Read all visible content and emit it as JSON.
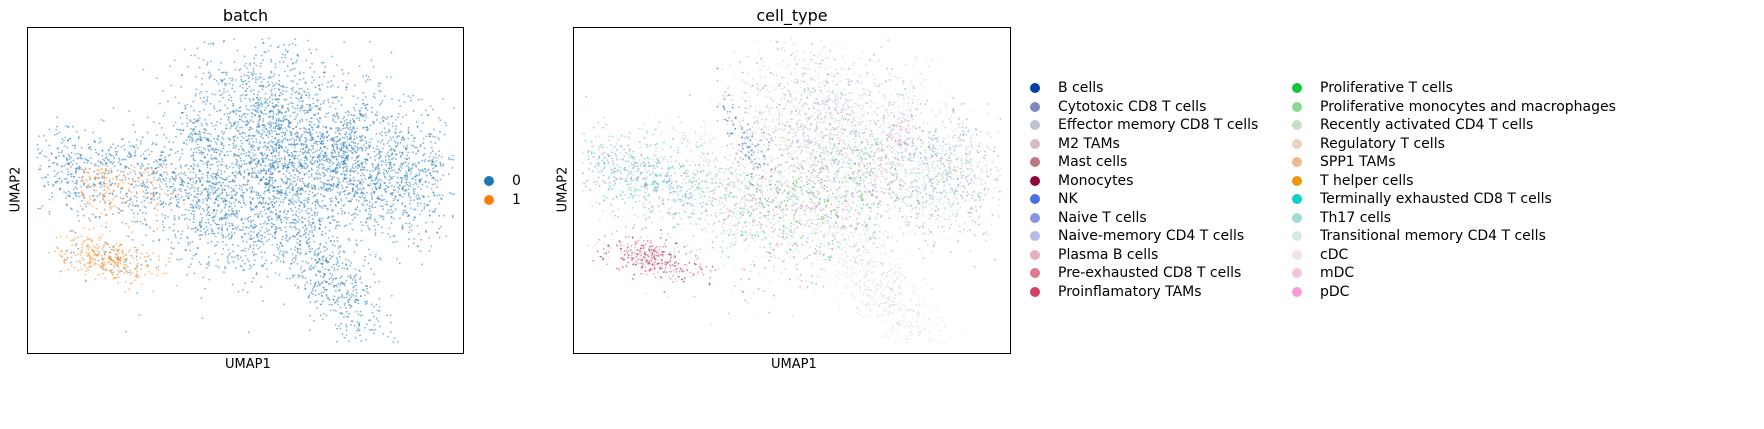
{
  "chart_data": [
    {
      "type": "scatter",
      "title": "batch",
      "xlabel": "UMAP1",
      "ylabel": "UMAP2",
      "ticks": false,
      "legend_position": "right",
      "series": [
        {
          "name": "0",
          "color": "#1f77b4"
        },
        {
          "name": "1",
          "color": "#ff7f0e"
        }
      ]
    },
    {
      "type": "scatter",
      "title": "cell_type",
      "xlabel": "UMAP1",
      "ylabel": "UMAP2",
      "ticks": false,
      "legend_position": "right",
      "series": [
        {
          "name": "B cells",
          "color": "#023fa5"
        },
        {
          "name": "Cytotoxic CD8 T cells",
          "color": "#7d87b9"
        },
        {
          "name": "Effector memory CD8 T cells",
          "color": "#bec1d4"
        },
        {
          "name": "M2 TAMs",
          "color": "#d6bcc0"
        },
        {
          "name": "Mast cells",
          "color": "#bb7784"
        },
        {
          "name": "Monocytes",
          "color": "#8e063b"
        },
        {
          "name": "NK",
          "color": "#4a6fe3"
        },
        {
          "name": "Naive T cells",
          "color": "#8595e1"
        },
        {
          "name": "Naive-memory CD4 T cells",
          "color": "#b5bbe3"
        },
        {
          "name": "Plasma B cells",
          "color": "#e6afb9"
        },
        {
          "name": "Pre-exhausted CD8 T cells",
          "color": "#e07b91"
        },
        {
          "name": "Proinflamatory TAMs",
          "color": "#d33f6a"
        },
        {
          "name": "Proliferative T cells",
          "color": "#11c638"
        },
        {
          "name": "Proliferative monocytes and macrophages",
          "color": "#8dd593"
        },
        {
          "name": "Recently activated CD4 T cells",
          "color": "#c6dec7"
        },
        {
          "name": "Regulatory T cells",
          "color": "#ead3c6"
        },
        {
          "name": "SPP1 TAMs",
          "color": "#f0b98d"
        },
        {
          "name": "T helper cells",
          "color": "#ef9708"
        },
        {
          "name": "Terminally exhausted CD8 T cells",
          "color": "#0fcfc0"
        },
        {
          "name": "Th17 cells",
          "color": "#9cded6"
        },
        {
          "name": "Transitional memory CD4 T cells",
          "color": "#d5eae7"
        },
        {
          "name": "cDC",
          "color": "#f3e1eb"
        },
        {
          "name": "mDC",
          "color": "#f6c4e1"
        },
        {
          "name": "pDC",
          "color": "#f79cd4"
        }
      ]
    }
  ]
}
